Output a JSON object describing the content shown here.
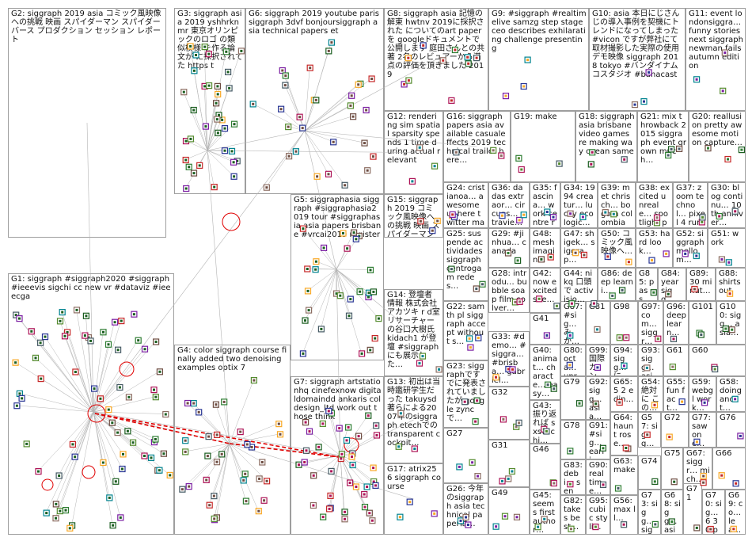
{
  "groups": [
    {
      "id": "G2",
      "label": "G2: siggraph 2019 asia コミック風映像への挑戦 映画 スパイダーマン スパイダーバース プロダクション セッション レポート"
    },
    {
      "id": "G3",
      "label": "G3: siggraph asia 2019 yshhrknmr 東京オリンピックのロゴ の類似模様 を作る論文が に採択されてた https t"
    },
    {
      "id": "G6",
      "label": "G6: siggraph 2019 youtube parissiggraph 3dvf bonjoursiggraph asia technical papers et"
    },
    {
      "id": "G8",
      "label": "G8: siggraph asia 記憶の解東 hwtnv 2019に採択された についてのart paperを googleドキュメントで公開します 庭田さんとの共著 2名のレビュアーから満点の評価を頂きました 2019"
    },
    {
      "id": "G9",
      "label": "G9: #siggraph #realtimelive samzg step stage ceo describes exhilarating challenge presenting"
    },
    {
      "id": "G10",
      "label": "G10: asia 本日にじさんじの導入事例を契機にトレンドになってしまった #vicon ですが弊社にて取材撮影した実際の使用デモ映像 siggraph 2018 tokyo #バンダイナムコスタジオ #banacast"
    },
    {
      "id": "G11",
      "label": "G11: event londonsiggra… funny stories next siggraph newman fails autumn edition"
    },
    {
      "id": "G12",
      "label": "G12: rendering sim spatial sparsity spends 1 time during actual relevant"
    },
    {
      "id": "G16",
      "label": "G16: siggraph papers asia available casualeffects 2019 technical trailer here…"
    },
    {
      "id": "G19",
      "label": "G19: make"
    },
    {
      "id": "G18",
      "label": "G18: siggraph asia brisbane video games re making way ocean same"
    },
    {
      "id": "G21",
      "label": "G21: mix throwback 2015 siggraph event grown much…"
    },
    {
      "id": "G20",
      "label": "G20: reallusion pretty awesome motion capture…"
    },
    {
      "id": "G5",
      "label": "G5: siggraphasia siggraph #siggraphasia2019 tour #siggraphasia asia papers brisbane #vrcai2019 register"
    },
    {
      "id": "G15",
      "label": "G15: siggraph 2019 コミック風映像への挑戦 映画 スパイダーマン スパイダーバース プロダクション セッション レポート 4"
    },
    {
      "id": "G24",
      "label": "G24: cristianoa… awesome ur here twitter masters…"
    },
    {
      "id": "G36",
      "label": "G36: dadas extraor… circuns… atravie…"
    },
    {
      "id": "G35",
      "label": "G35: fascina… work centre research…"
    },
    {
      "id": "G34",
      "label": "G34: 1994 creatur… lucky ecologic…"
    },
    {
      "id": "G39",
      "label": "G39: met chrisch… bogota colombia"
    },
    {
      "id": "G38",
      "label": "G38: excited unreale… spotlight page…"
    },
    {
      "id": "G37",
      "label": "G37: zoom technol… pixel 4 runs…"
    },
    {
      "id": "G30",
      "label": "G30: blog continu… 10th anniver…"
    },
    {
      "id": "G25",
      "label": "G25: suspende actividades siggraph centrogam redes…"
    },
    {
      "id": "G29",
      "label": "G29: #jinhua… canada"
    },
    {
      "id": "G48",
      "label": "G48: mesh imagin…"
    },
    {
      "id": "G47",
      "label": "G47: shigek… siggrap…"
    },
    {
      "id": "G50",
      "label": "G50: コミック風映像へ…"
    },
    {
      "id": "G53",
      "label": "G53: hard look…"
    },
    {
      "id": "G52",
      "label": "G52: siggraph mellom…"
    },
    {
      "id": "G51",
      "label": "G51: work"
    },
    {
      "id": "G14",
      "label": "G14: 登壇者 情報 株式会社アカツキ r d室 リサーチャーの谷口大樹氏 kidach1 が登壇 #siggraph にも展示した…"
    },
    {
      "id": "G28",
      "label": "G28: introdu… bubble soap film solver…"
    },
    {
      "id": "G42",
      "label": "G42: now excited see…"
    },
    {
      "id": "G44",
      "label": "G44: nikq 口頭で activisio…"
    },
    {
      "id": "G86",
      "label": "G86: deep learni…"
    },
    {
      "id": "G85",
      "label": "G85: pass…"
    },
    {
      "id": "G84",
      "label": "G84: year sigg…"
    },
    {
      "id": "G89",
      "label": "G89: 30 minut…"
    },
    {
      "id": "G88",
      "label": "G88: shirts out"
    },
    {
      "id": "G22",
      "label": "G22: samth pl siggraph accept without s…"
    },
    {
      "id": "G41",
      "label": "G41"
    },
    {
      "id": "G87",
      "label": "G87: #sig… みか…"
    },
    {
      "id": "G81",
      "label": "G81"
    },
    {
      "id": "G98",
      "label": "G98"
    },
    {
      "id": "G97",
      "label": "G97: com… siggr…"
    },
    {
      "id": "G96",
      "label": "G96: deep learn…"
    },
    {
      "id": "G101",
      "label": "G101"
    },
    {
      "id": "G100",
      "label": "G100: sigg… asia…"
    },
    {
      "id": "G1",
      "label": "G1: siggraph #siggraph2020 #siggraph #ieeevis sigchi cc new vr #dataviz #ieeecga"
    },
    {
      "id": "G4",
      "label": "G4: color siggraph course finally added two denoising examples optix 7"
    },
    {
      "id": "G33",
      "label": "G33: #demo… #siggra… #brisba… gabriel…"
    },
    {
      "id": "G80",
      "label": "G80: octa… unre…"
    },
    {
      "id": "G99",
      "label": "G99: 国際 カン…"
    },
    {
      "id": "G94",
      "label": "G94: sigg… にパ…"
    },
    {
      "id": "G93",
      "label": "G93: sigg… asia…"
    },
    {
      "id": "G61",
      "label": "G61"
    },
    {
      "id": "G60",
      "label": "G60"
    },
    {
      "id": "G23",
      "label": "G23: siggraphですでに発表されていましたが google zync で…"
    },
    {
      "id": "G40",
      "label": "G40: animat… characte… easy…"
    },
    {
      "id": "G79",
      "label": "G79"
    },
    {
      "id": "G92",
      "label": "G92: sigg… asia…"
    },
    {
      "id": "G65",
      "label": "G65: 5 2 edin…"
    },
    {
      "id": "G54",
      "label": "G54: 絶対に この…"
    },
    {
      "id": "G55",
      "label": "G55: fun fact…"
    },
    {
      "id": "G59",
      "label": "G59: webgl work…"
    },
    {
      "id": "G58",
      "label": "G58: doing anot…"
    },
    {
      "id": "G13",
      "label": "G13: 初出は当時鑑研学生だった takuysd 著らによる2007年のsiggraph etechでの transparent cockpit…"
    },
    {
      "id": "G32",
      "label": "G32"
    },
    {
      "id": "G43",
      "label": "G43: 振り返れば sxsw chi…"
    },
    {
      "id": "G7",
      "label": "G7: siggraph artstationhq cinefexnow digitaldomaindd ankaris coldesign_ltd work out those think"
    },
    {
      "id": "G78",
      "label": "G78"
    },
    {
      "id": "G91",
      "label": "G91: #sig… earli…"
    },
    {
      "id": "G64",
      "label": "G64: haunt rose…"
    },
    {
      "id": "G57",
      "label": "G57: sigg… inter…"
    },
    {
      "id": "G72",
      "label": "G72"
    },
    {
      "id": "G77",
      "label": "G77: saw one…"
    },
    {
      "id": "G76",
      "label": "G76"
    },
    {
      "id": "G27",
      "label": "G27"
    },
    {
      "id": "G31",
      "label": "G31"
    },
    {
      "id": "G46",
      "label": "G46"
    },
    {
      "id": "G83",
      "label": "G83: debi… sens…"
    },
    {
      "id": "G90",
      "label": "G90: real time…"
    },
    {
      "id": "G63",
      "label": "G63: make"
    },
    {
      "id": "G74",
      "label": "G74"
    },
    {
      "id": "G75",
      "label": "G75"
    },
    {
      "id": "G67",
      "label": "G67: siggr… mich…"
    },
    {
      "id": "G66",
      "label": "G66"
    },
    {
      "id": "G17",
      "label": "G17: atrix256 siggraph course"
    },
    {
      "id": "G26",
      "label": "G26: 今年のsiggraph asia technical paperは…"
    },
    {
      "id": "G49",
      "label": "G49"
    },
    {
      "id": "G45",
      "label": "G45: seems first author…"
    },
    {
      "id": "G82",
      "label": "G82: takes best…"
    },
    {
      "id": "G95",
      "label": "G95: cubic styli…"
    },
    {
      "id": "G56",
      "label": "G56: max ll…"
    },
    {
      "id": "G73",
      "label": "G73: sigg… sigg…"
    },
    {
      "id": "G68",
      "label": "G68: sigg… asia…"
    },
    {
      "id": "G71",
      "label": "G71"
    },
    {
      "id": "G70",
      "label": "G70: sig… 6 30 pm…"
    },
    {
      "id": "G69",
      "label": "G69: co… lea… su…"
    }
  ],
  "colors": {
    "border": "#9e9e9e",
    "edge": "#b4b4b4",
    "highlight_edge": "#e00000",
    "node_palette": [
      "#2e7d32",
      "#1b5e20",
      "#6d4c41",
      "#c62828",
      "#f9a825",
      "#283593",
      "#7b1fa2",
      "#00838f",
      "#8d6e63",
      "#558b2f",
      "#ad1457",
      "#455a64"
    ]
  }
}
